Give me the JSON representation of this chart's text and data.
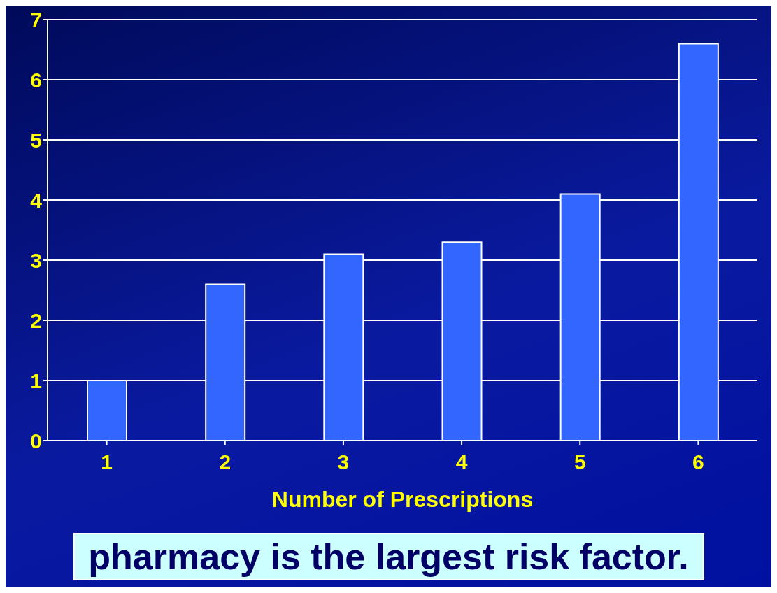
{
  "chart_data": {
    "type": "bar",
    "categories": [
      "1",
      "2",
      "3",
      "4",
      "5",
      "6"
    ],
    "values": [
      1.0,
      2.6,
      3.1,
      3.3,
      4.1,
      6.6
    ],
    "color": "#3366ff",
    "xlabel": "Number of Prescriptions",
    "ylim": [
      0,
      7
    ],
    "yticks": [
      0,
      1,
      2,
      3,
      4,
      5,
      6,
      7
    ],
    "grid": "y",
    "annotations": [
      "pharmacy is the largest risk factor."
    ]
  }
}
